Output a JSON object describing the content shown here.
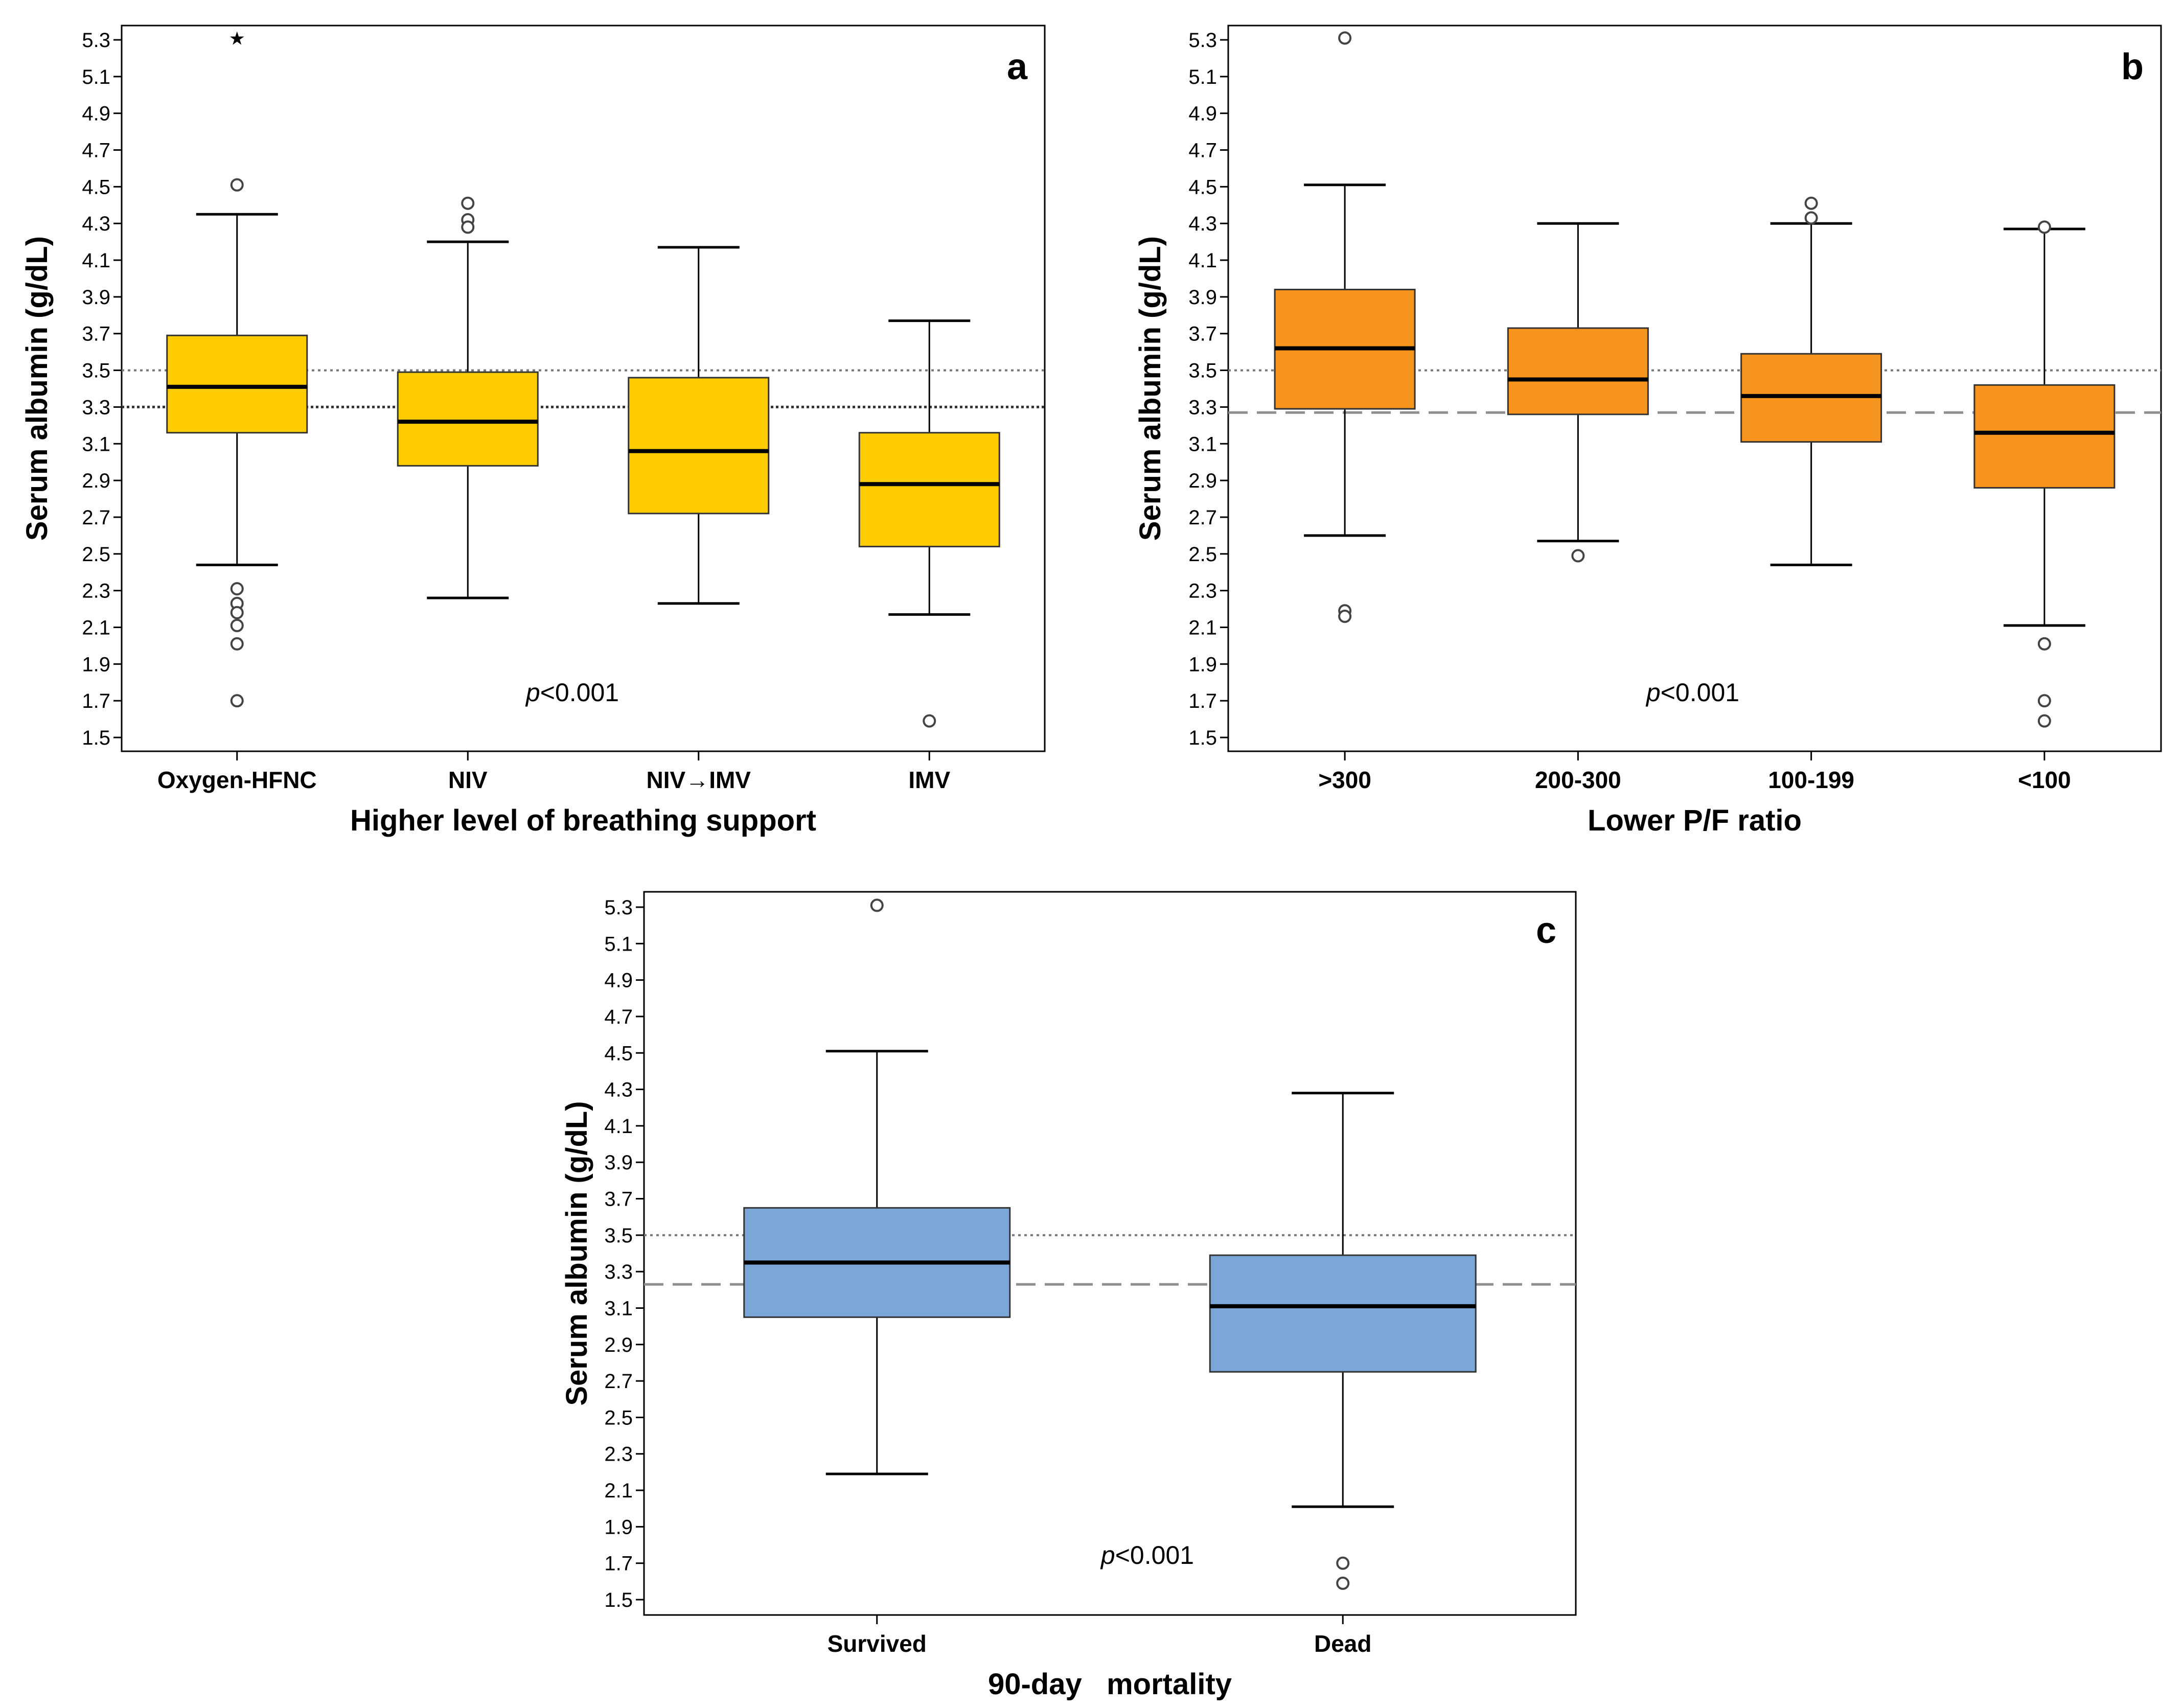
{
  "colors": {
    "panel_a": "#ffcc00",
    "panel_b": "#f7941d",
    "panel_c": "#7aa7d7",
    "outlier_stroke": "#444444",
    "ref_line": "#777777"
  },
  "chart_data": [
    {
      "type": "boxplot",
      "id": "a",
      "panel_letter": "a",
      "xlabel": "Higher level of breathing support",
      "ylabel": "Serum albumin (g/dL)",
      "ylim": [
        1.42,
        5.38
      ],
      "yticks": [
        "1.5",
        "1.7",
        "1.9",
        "2.1",
        "2.3",
        "2.5",
        "2.7",
        "2.9",
        "3.1",
        "3.3",
        "3.5",
        "3.7",
        "3.9",
        "4.1",
        "4.3",
        "4.5",
        "4.7",
        "4.9",
        "5.1",
        "5.3"
      ],
      "annotation": {
        "prefix": "p",
        "text": "<0.001"
      },
      "reference_lines": [
        {
          "y": 3.5,
          "style": "dotted"
        },
        {
          "y": 3.3,
          "style": "dotted-dark"
        }
      ],
      "categories": [
        {
          "label": "Oxygen-HFNC",
          "whisker_low": 2.44,
          "q1": 3.16,
          "median": 3.41,
          "q3": 3.69,
          "whisker_high": 4.35,
          "outliers": [
            4.51,
            2.31,
            2.23,
            2.18,
            2.11,
            2.01,
            1.7
          ],
          "extremes": [
            5.31
          ]
        },
        {
          "label": "NIV",
          "whisker_low": 2.26,
          "q1": 2.98,
          "median": 3.22,
          "q3": 3.49,
          "whisker_high": 4.2,
          "outliers": [
            4.41,
            4.32,
            4.28
          ],
          "extremes": []
        },
        {
          "label": "NIV→IMV",
          "whisker_low": 2.23,
          "q1": 2.72,
          "median": 3.06,
          "q3": 3.46,
          "whisker_high": 4.17,
          "outliers": [],
          "extremes": []
        },
        {
          "label": "IMV",
          "whisker_low": 2.17,
          "q1": 2.54,
          "median": 2.88,
          "q3": 3.16,
          "whisker_high": 3.77,
          "outliers": [
            1.59
          ],
          "extremes": []
        }
      ]
    },
    {
      "type": "boxplot",
      "id": "b",
      "panel_letter": "b",
      "xlabel": "Lower P/F ratio",
      "ylabel": "Serum albumin (g/dL)",
      "ylim": [
        1.42,
        5.38
      ],
      "yticks": [
        "1.5",
        "1.7",
        "1.9",
        "2.1",
        "2.3",
        "2.5",
        "2.7",
        "2.9",
        "3.1",
        "3.3",
        "3.5",
        "3.7",
        "3.9",
        "4.1",
        "4.3",
        "4.5",
        "4.7",
        "4.9",
        "5.1",
        "5.3"
      ],
      "annotation": {
        "prefix": "p",
        "text": "<0.001"
      },
      "reference_lines": [
        {
          "y": 3.5,
          "style": "dotted"
        },
        {
          "y": 3.27,
          "style": "dashed"
        }
      ],
      "categories": [
        {
          "label": ">300",
          "whisker_low": 2.6,
          "q1": 3.29,
          "median": 3.62,
          "q3": 3.94,
          "whisker_high": 4.51,
          "outliers": [
            5.31,
            2.19,
            2.16
          ],
          "extremes": []
        },
        {
          "label": "200-300",
          "whisker_low": 2.57,
          "q1": 3.26,
          "median": 3.45,
          "q3": 3.73,
          "whisker_high": 4.3,
          "outliers": [
            2.49
          ],
          "extremes": []
        },
        {
          "label": "100-199",
          "whisker_low": 2.44,
          "q1": 3.11,
          "median": 3.36,
          "q3": 3.59,
          "whisker_high": 4.3,
          "outliers": [
            4.41,
            4.33
          ],
          "extremes": []
        },
        {
          "label": "<100",
          "whisker_low": 2.11,
          "q1": 2.86,
          "median": 3.16,
          "q3": 3.42,
          "whisker_high": 4.27,
          "outliers": [
            4.28,
            2.01,
            1.7,
            1.59
          ],
          "extremes": []
        }
      ]
    },
    {
      "type": "boxplot",
      "id": "c",
      "panel_letter": "c",
      "xlabel": "90-day   mortality",
      "ylabel": "Serum albumin (g/dL)",
      "ylim": [
        1.42,
        5.38
      ],
      "yticks": [
        "1.5",
        "1.7",
        "1.9",
        "2.1",
        "2.3",
        "2.5",
        "2.7",
        "2.9",
        "3.1",
        "3.3",
        "3.5",
        "3.7",
        "3.9",
        "4.1",
        "4.3",
        "4.5",
        "4.7",
        "4.9",
        "5.1",
        "5.3"
      ],
      "annotation": {
        "prefix": "p",
        "text": "<0.001"
      },
      "reference_lines": [
        {
          "y": 3.5,
          "style": "dotted"
        },
        {
          "y": 3.23,
          "style": "dashed"
        }
      ],
      "categories": [
        {
          "label": "Survived",
          "whisker_low": 2.19,
          "q1": 3.05,
          "median": 3.35,
          "q3": 3.65,
          "whisker_high": 4.51,
          "outliers": [
            5.31
          ],
          "extremes": []
        },
        {
          "label": "Dead",
          "whisker_low": 2.01,
          "q1": 2.75,
          "median": 3.11,
          "q3": 3.39,
          "whisker_high": 4.28,
          "outliers": [
            1.7,
            1.59
          ],
          "extremes": []
        }
      ]
    }
  ]
}
